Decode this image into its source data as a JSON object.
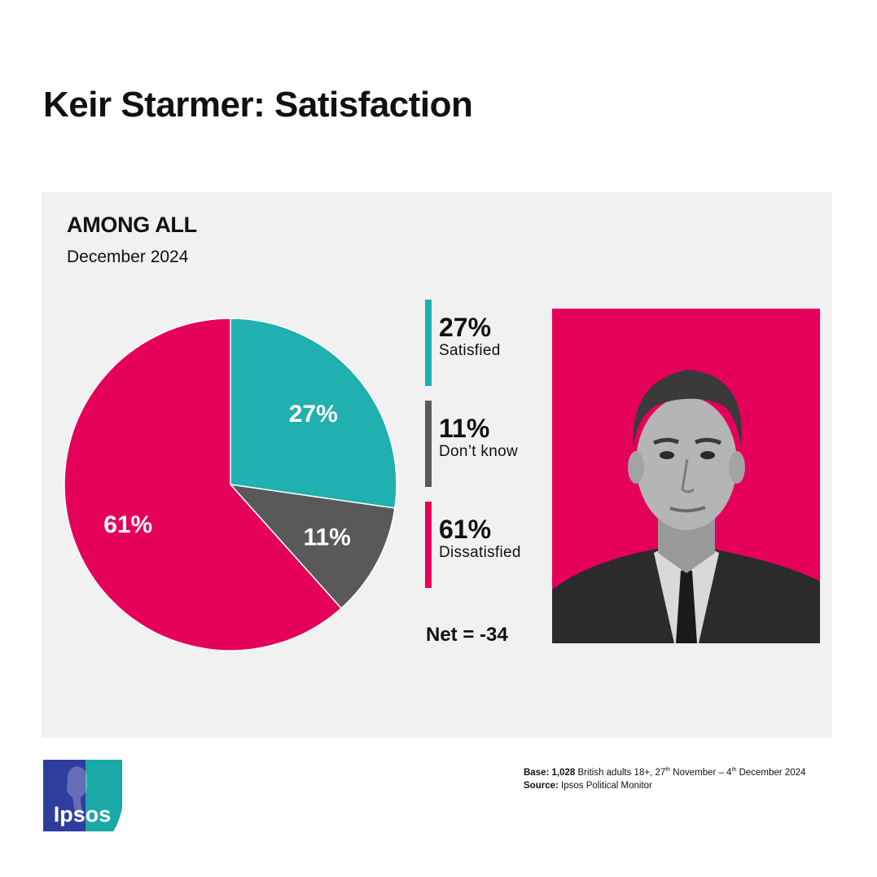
{
  "title": "Keir Starmer: Satisfaction",
  "panel": {
    "heading": "AMONG ALL",
    "date": "December 2024"
  },
  "chart_data": {
    "type": "pie",
    "slices": [
      {
        "label": "Satisfied",
        "value": 27,
        "display": "27%",
        "color": "#1fb0af"
      },
      {
        "label": "Don’t know",
        "value": 11,
        "display": "11%",
        "color": "#595959"
      },
      {
        "label": "Dissatisfied",
        "value": 61,
        "display": "61%",
        "color": "#e5005a"
      }
    ],
    "start_angle": "12 o'clock",
    "direction": "clockwise"
  },
  "legend": [
    {
      "value": "27%",
      "label": "Satisfied",
      "color": "#1fb0af"
    },
    {
      "value": "11%",
      "label": "Don’t know",
      "color": "#595959"
    },
    {
      "value": "61%",
      "label": "Dissatisfied",
      "color": "#e5005a"
    }
  ],
  "net": "Net = -34",
  "footer": {
    "base_label": "Base:",
    "base_count": "1,028",
    "base_text_1": "British adults 18+, 27",
    "base_sup_1": "th",
    "base_text_2": "November – 4",
    "base_sup_2": "th",
    "base_text_3": "December 2024",
    "source_label": "Source:",
    "source_text": "Ipsos Political Monitor"
  },
  "logo": {
    "text": "Ipsos",
    "colors": [
      "#2f3e9e",
      "#1aa9a6"
    ]
  },
  "photo": {
    "background": "#e5005a"
  }
}
